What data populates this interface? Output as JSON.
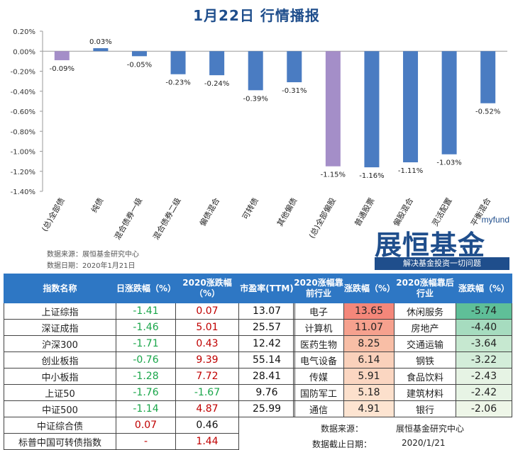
{
  "title": "1月22日  行情播报",
  "chart_data": {
    "type": "bar",
    "categories": [
      "(总)全部债",
      "纯债",
      "混合债券一级",
      "混合债券二级",
      "偏债混合",
      "可转债",
      "其他偏债",
      "(总)全部偏股",
      "普通股票",
      "偏股混合",
      "灵活配置",
      "平衡混合"
    ],
    "values": [
      -0.09,
      0.03,
      -0.05,
      -0.23,
      -0.24,
      -0.39,
      -0.31,
      -1.15,
      -1.16,
      -1.11,
      -1.03,
      -0.52
    ],
    "data_labels": [
      "-0.09%",
      "0.03%",
      "-0.05%",
      "-0.23%",
      "-0.24%",
      "-0.39%",
      "-0.31%",
      "-1.15%",
      "-1.16%",
      "-1.11%",
      "-1.03%",
      "-0.52%"
    ],
    "yticks": [
      "0.20%",
      "0.00%",
      "-0.20%",
      "-0.40%",
      "-0.60%",
      "-0.80%",
      "-1.00%",
      "-1.20%",
      "-1.40%"
    ],
    "ylim": [
      -1.4,
      0.2
    ],
    "colors": {
      "total": "#a48ec8",
      "normal": "#4a7cc2"
    },
    "highlight_indices": [
      0,
      7
    ]
  },
  "source": {
    "line1": "数据来源：展恒基金研究中心",
    "line2": "数据日期：2020年1月21日"
  },
  "logo": {
    "myfund": "myfund",
    "brand": "展恒基金",
    "slogan": "解决基金投资一切问题"
  },
  "left_table": {
    "headers": [
      "指数名称",
      "日涨跌幅（%）",
      "2020涨跌幅（%）",
      "市盈率(TTM)"
    ],
    "rows": [
      {
        "name": "上证综指",
        "day": "-1.41",
        "ytd": "0.07",
        "pe": "13.07",
        "dayc": "g",
        "ytdc": "r"
      },
      {
        "name": "深证成指",
        "day": "-1.46",
        "ytd": "5.01",
        "pe": "25.57",
        "dayc": "g",
        "ytdc": "r"
      },
      {
        "name": "沪深300",
        "day": "-1.71",
        "ytd": "0.43",
        "pe": "12.42",
        "dayc": "g",
        "ytdc": "r"
      },
      {
        "name": "创业板指",
        "day": "-0.76",
        "ytd": "9.39",
        "pe": "55.14",
        "dayc": "g",
        "ytdc": "r"
      },
      {
        "name": "中小板指",
        "day": "-1.28",
        "ytd": "7.72",
        "pe": "28.41",
        "dayc": "g",
        "ytdc": "r"
      },
      {
        "name": "上证50",
        "day": "-1.76",
        "ytd": "-1.67",
        "pe": "9.76",
        "dayc": "g",
        "ytdc": "g"
      },
      {
        "name": "中证500",
        "day": "-1.14",
        "ytd": "4.87",
        "pe": "25.99",
        "dayc": "g",
        "ytdc": "r"
      },
      {
        "name": "中证综合债",
        "day": "0.07",
        "ytd": "0.46",
        "pe": "",
        "dayc": "r",
        "ytdc": "k"
      },
      {
        "name": "标普中国可转债指数",
        "day": "-",
        "ytd": "1.44",
        "pe": "",
        "dayc": "r",
        "ytdc": "r"
      }
    ]
  },
  "right_table": {
    "headers": [
      "2020涨幅靠前行业",
      "涨跌幅（%）",
      "2020涨幅靠后行业",
      "涨跌幅（%）"
    ],
    "rows": [
      {
        "top": "电子",
        "topv": "13.65",
        "topbg": "#f4877a",
        "bot": "休闲服务",
        "botv": "-5.74",
        "botbg": "#5fbf98"
      },
      {
        "top": "计算机",
        "topv": "11.07",
        "topbg": "#f6a18e",
        "bot": "房地产",
        "botv": "-4.40",
        "botbg": "#a6dcbf"
      },
      {
        "top": "医药生物",
        "topv": "8.25",
        "topbg": "#f8bea6",
        "bot": "交通运输",
        "botv": "-3.64",
        "botbg": "#c6e8d0"
      },
      {
        "top": "电气设备",
        "topv": "6.14",
        "topbg": "#fad1bb",
        "bot": "钢铁",
        "botv": "-3.22",
        "botbg": "#d3edd9"
      },
      {
        "top": "传媒",
        "topv": "5.91",
        "topbg": "#fbd6c1",
        "bot": "食品饮料",
        "botv": "-2.43",
        "botbg": "#e6f3e4"
      },
      {
        "top": "国防军工",
        "topv": "5.18",
        "topbg": "#fce0cc",
        "bot": "建筑材料",
        "botv": "-2.42",
        "botbg": "#e7f4e5"
      },
      {
        "top": "通信",
        "topv": "4.91",
        "topbg": "#fde4d1",
        "bot": "银行",
        "botv": "-2.06",
        "botbg": "#eef6e8"
      }
    ]
  },
  "footer": {
    "src_label": "数据来源：",
    "src_value": "展恒基金研究中心",
    "date_label": "数据截止日期：",
    "date_value": "2020/1/21"
  }
}
